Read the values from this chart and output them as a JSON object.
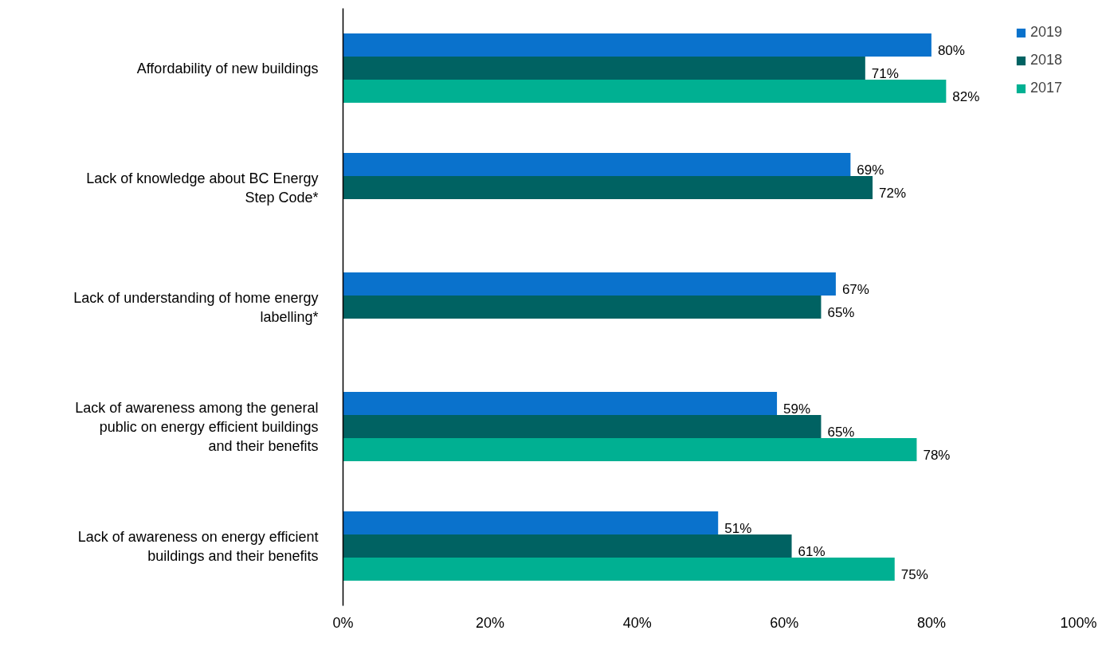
{
  "chart_data": {
    "type": "bar",
    "orientation": "horizontal",
    "categories": [
      "Affordability of new buildings",
      "Lack of knowledge about BC Energy Step Code*",
      "Lack of understanding of home energy labelling*",
      "Lack of awareness among the general public on energy efficient buildings and their benefits",
      "Lack of awareness on energy efficient buildings and their benefits"
    ],
    "series": [
      {
        "name": "2019",
        "color": "#0a72cc",
        "values": [
          80,
          69,
          67,
          59,
          51
        ],
        "value_labels": [
          "80%",
          "69%",
          "67%",
          "59%",
          "51%"
        ]
      },
      {
        "name": "2018",
        "color": "#006262",
        "values": [
          71,
          72,
          65,
          65,
          61
        ],
        "value_labels": [
          "71%",
          "72%",
          "65%",
          "65%",
          "61%"
        ]
      },
      {
        "name": "2017",
        "color": "#00b092",
        "values": [
          82,
          null,
          null,
          78,
          75
        ],
        "value_labels": [
          "82%",
          null,
          null,
          "78%",
          "75%"
        ]
      }
    ],
    "xlim": [
      0,
      100
    ],
    "xticks": [
      {
        "value": 0,
        "label": "0%"
      },
      {
        "value": 20,
        "label": "20%"
      },
      {
        "value": 40,
        "label": "40%"
      },
      {
        "value": 60,
        "label": "60%"
      },
      {
        "value": 80,
        "label": "80%"
      },
      {
        "value": 100,
        "label": "100%"
      }
    ],
    "grid": false,
    "legend": "top right"
  }
}
